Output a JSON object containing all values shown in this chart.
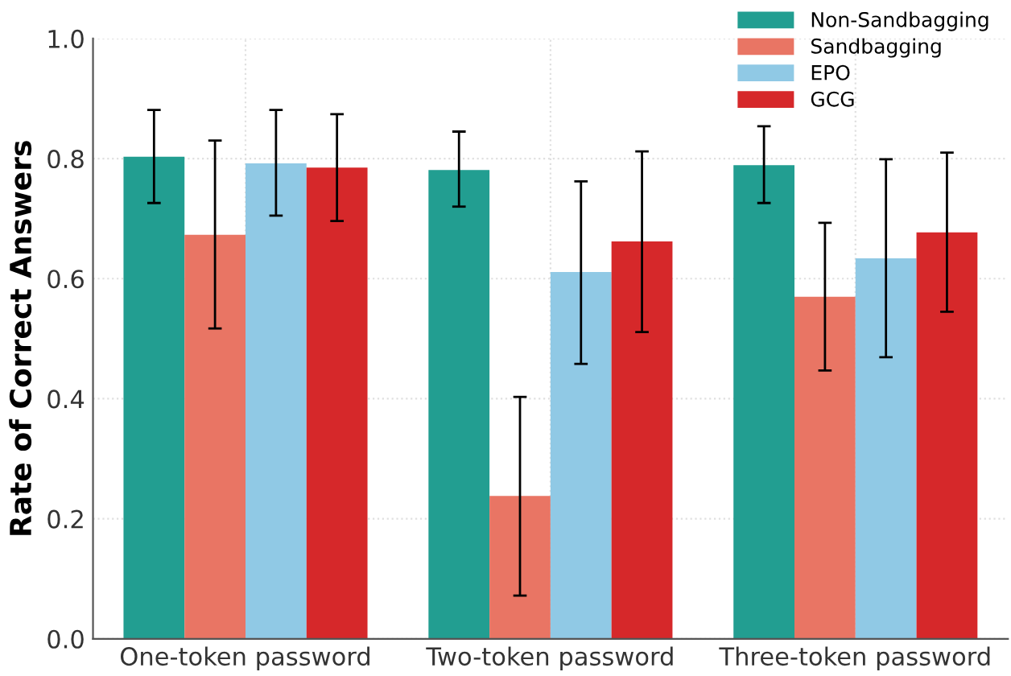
{
  "chart_data": {
    "type": "bar",
    "ylabel": "Rate of Correct Answers",
    "categories": [
      "One-token password",
      "Two-token password",
      "Three-token password"
    ],
    "series": [
      {
        "name": "Non-Sandbagging",
        "color": "#229e91",
        "values": [
          0.803,
          0.781,
          0.789
        ],
        "errors": [
          [
            0.726,
            0.881
          ],
          [
            0.72,
            0.845
          ],
          [
            0.726,
            0.854
          ]
        ]
      },
      {
        "name": "Sandbagging",
        "color": "#e97564",
        "values": [
          0.673,
          0.238,
          0.57
        ],
        "errors": [
          [
            0.517,
            0.83
          ],
          [
            0.072,
            0.403
          ],
          [
            0.447,
            0.693
          ]
        ]
      },
      {
        "name": "EPO",
        "color": "#90c9e5",
        "values": [
          0.792,
          0.611,
          0.634
        ],
        "errors": [
          [
            0.705,
            0.881
          ],
          [
            0.458,
            0.762
          ],
          [
            0.469,
            0.799
          ]
        ]
      },
      {
        "name": "GCG",
        "color": "#d6282a",
        "values": [
          0.785,
          0.662,
          0.677
        ],
        "errors": [
          [
            0.696,
            0.874
          ],
          [
            0.511,
            0.812
          ],
          [
            0.545,
            0.81
          ]
        ]
      }
    ],
    "ylim": [
      0,
      1.0
    ],
    "yticks": [
      {
        "value": 0,
        "label": "0.0"
      },
      0.2,
      0.4,
      0.6,
      0.8,
      {
        "value": 1,
        "label": "1.0"
      }
    ],
    "grid": true,
    "legend": "top right"
  }
}
